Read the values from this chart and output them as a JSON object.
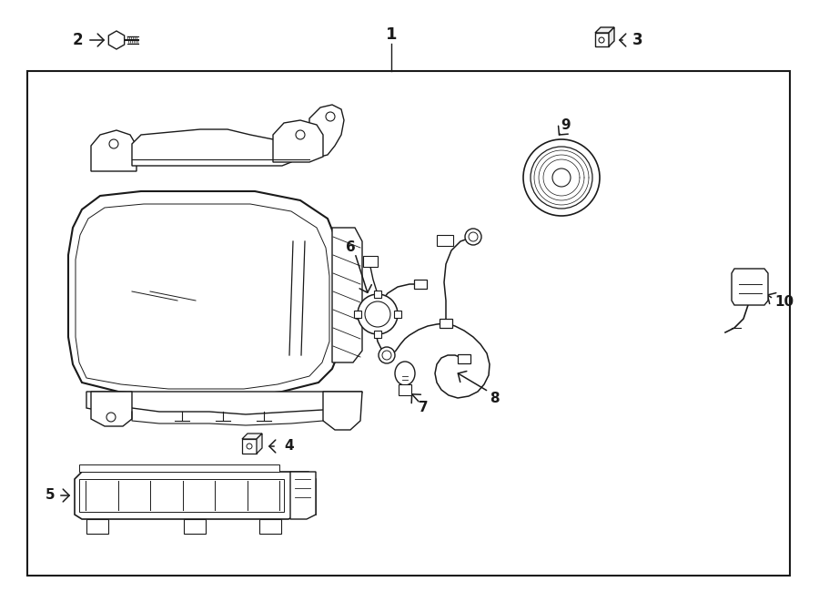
{
  "bg_color": "#ffffff",
  "box_bg": "#ffffff",
  "line_color": "#1a1a1a",
  "title": "1",
  "label_2": "2",
  "label_3": "3",
  "label_4": "4",
  "label_5": "5",
  "label_6": "6",
  "label_7": "7",
  "label_8": "8",
  "label_9": "9",
  "label_10": "10"
}
